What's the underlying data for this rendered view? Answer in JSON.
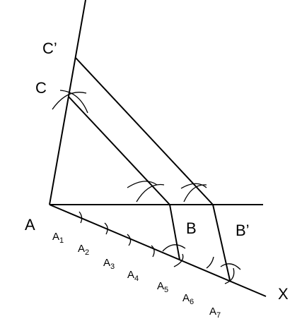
{
  "points": [
    {
      "label": "C’"
    },
    {
      "label": "C"
    },
    {
      "label": "A"
    },
    {
      "label": "B"
    },
    {
      "label": "B’"
    },
    {
      "label": "X"
    }
  ],
  "divisions": [
    {
      "label": "A",
      "subscript": "1"
    },
    {
      "label": "A",
      "subscript": "2"
    },
    {
      "label": "A",
      "subscript": "3"
    },
    {
      "label": "A",
      "subscript": "4"
    },
    {
      "label": "A",
      "subscript": "5"
    },
    {
      "label": "A",
      "subscript": "6"
    },
    {
      "label": "A",
      "subscript": "7"
    }
  ]
}
